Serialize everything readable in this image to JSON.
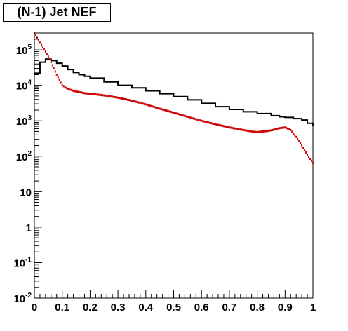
{
  "chart_data": {
    "type": "line",
    "title": "(N-1) Jet NEF",
    "xlabel": "",
    "ylabel": "",
    "xlim": [
      0,
      1
    ],
    "ylim": [
      0.01,
      300000
    ],
    "ylog": true,
    "grid": false,
    "x_ticks": [
      "0",
      "0.1",
      "0.2",
      "0.3",
      "0.4",
      "0.5",
      "0.6",
      "0.7",
      "0.8",
      "0.9",
      "1"
    ],
    "y_ticks": [
      {
        "value": 0.01,
        "base": "10",
        "exp": "-2"
      },
      {
        "value": 0.1,
        "base": "10",
        "exp": "-1"
      },
      {
        "value": 1,
        "base": "1",
        "exp": ""
      },
      {
        "value": 10,
        "base": "10",
        "exp": ""
      },
      {
        "value": 100,
        "base": "10",
        "exp": "2"
      },
      {
        "value": 1000,
        "base": "10",
        "exp": "3"
      },
      {
        "value": 10000,
        "base": "10",
        "exp": "4"
      },
      {
        "value": 100000,
        "base": "10",
        "exp": "5"
      }
    ],
    "series": [
      {
        "color": "#000000",
        "style": "step",
        "x": [
          0.0,
          0.02,
          0.04,
          0.06,
          0.08,
          0.1,
          0.12,
          0.14,
          0.16,
          0.18,
          0.2,
          0.25,
          0.3,
          0.35,
          0.4,
          0.45,
          0.5,
          0.55,
          0.6,
          0.65,
          0.7,
          0.75,
          0.8,
          0.85,
          0.88,
          0.9,
          0.93,
          0.96,
          0.98,
          1.0
        ],
        "y": [
          22000,
          45000,
          55000,
          50000,
          42000,
          35000,
          28000,
          23000,
          20000,
          18000,
          16000,
          12500,
          10000,
          8500,
          7000,
          5800,
          4800,
          3900,
          3100,
          2500,
          2100,
          1800,
          1600,
          1400,
          1300,
          1250,
          1150,
          1050,
          850,
          700
        ]
      },
      {
        "color": "#cc0000",
        "style": "markers",
        "x": [
          0.0,
          0.01,
          0.02,
          0.03,
          0.04,
          0.05,
          0.06,
          0.07,
          0.08,
          0.09,
          0.1,
          0.12,
          0.14,
          0.16,
          0.18,
          0.2,
          0.25,
          0.3,
          0.35,
          0.4,
          0.45,
          0.5,
          0.55,
          0.6,
          0.65,
          0.7,
          0.75,
          0.78,
          0.8,
          0.82,
          0.84,
          0.86,
          0.88,
          0.9,
          0.92,
          0.94,
          0.96,
          0.98,
          1.0
        ],
        "y": [
          300000,
          220000,
          160000,
          120000,
          90000,
          65000,
          45000,
          30000,
          20000,
          14000,
          10000,
          8000,
          7000,
          6500,
          6000,
          5800,
          5200,
          4500,
          3700,
          2900,
          2200,
          1700,
          1300,
          1000,
          800,
          650,
          550,
          500,
          480,
          500,
          520,
          560,
          620,
          650,
          550,
          350,
          200,
          110,
          65
        ]
      }
    ]
  }
}
